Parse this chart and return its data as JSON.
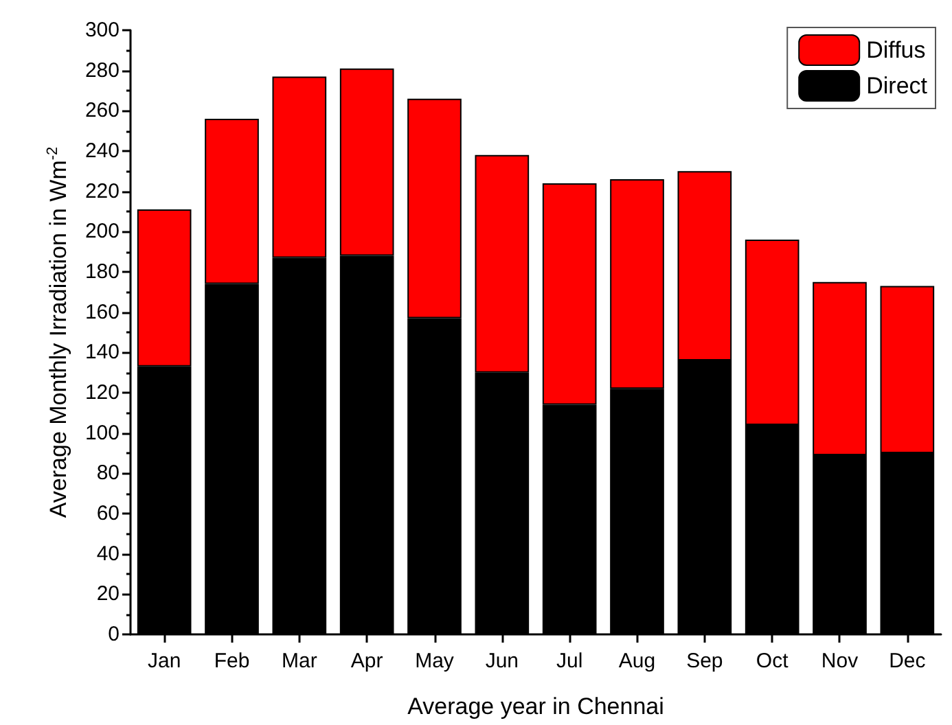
{
  "chart_data": {
    "type": "bar",
    "stacked": true,
    "xlabel": "Average year in Chennai",
    "ylabel": "Average Monthly Irradiation in Wm$^{-2}$",
    "categories": [
      "Jan",
      "Feb",
      "Mar",
      "Apr",
      "May",
      "Jun",
      "Jul",
      "Aug",
      "Sep",
      "Oct",
      "Nov",
      "Dec"
    ],
    "series": [
      {
        "name": "Direct",
        "color": "#000000",
        "values": [
          133,
          174,
          187,
          188,
          157,
          130,
          114,
          122,
          136,
          104,
          89,
          90
        ]
      },
      {
        "name": "Diffus",
        "color": "#ff0000",
        "values": [
          78,
          82,
          90,
          93,
          109,
          108,
          110,
          104,
          94,
          92,
          86,
          83
        ]
      }
    ],
    "ylim": [
      0,
      300
    ],
    "yticks": [
      0,
      20,
      40,
      60,
      80,
      100,
      120,
      140,
      160,
      180,
      200,
      220,
      240,
      260,
      280,
      300
    ],
    "grid": false,
    "legend": "top right"
  }
}
